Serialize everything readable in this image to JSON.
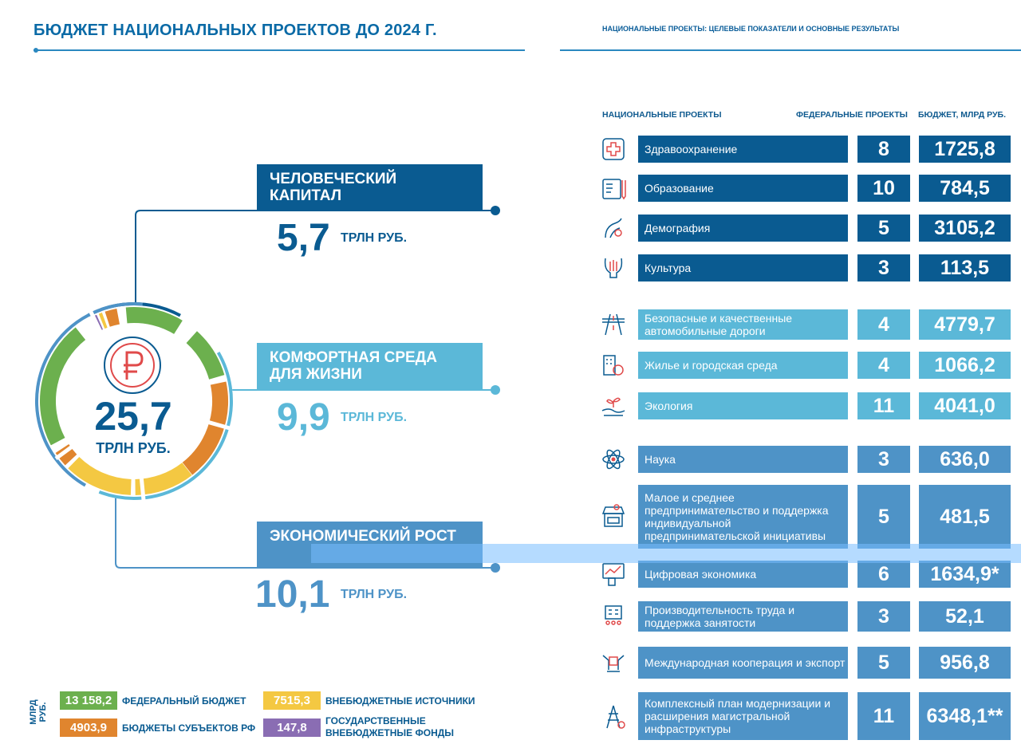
{
  "header": {
    "title": "БЮДЖЕТ НАЦИОНАЛЬНЫХ ПРОЕКТОВ ДО 2024 Г.",
    "subtitle": "НАЦИОНАЛЬНЫЕ ПРОЕКТЫ: ЦЕЛЕВЫЕ ПОКАЗАТЕЛИ И ОСНОВНЫЕ РЕЗУЛЬТАТЫ"
  },
  "total": {
    "value": "25,7",
    "unit": "ТРЛН РУБ."
  },
  "groups": [
    {
      "title": "ЧЕЛОВЕЧЕСКИЙ КАПИТАЛ",
      "value": "5,7",
      "unit": "ТРЛН РУБ.",
      "color": "#0a5b91"
    },
    {
      "title": "КОМФОРТНАЯ СРЕДА ДЛЯ ЖИЗНИ",
      "value": "9,9",
      "unit": "ТРЛН РУБ.",
      "color": "#5bb8d8"
    },
    {
      "title": "ЭКОНОМИЧЕСКИЙ РОСТ",
      "value": "10,1",
      "unit": "ТРЛН РУБ.",
      "color": "#4e93c7"
    }
  ],
  "table": {
    "col_projects": "НАЦИОНАЛЬНЫЕ ПРОЕКТЫ",
    "col_federal": "ФЕДЕРАЛЬНЫЕ ПРОЕКТЫ",
    "col_budget": "БЮДЖЕТ, МЛРД РУБ.",
    "rows": [
      {
        "icon": "health-cross-icon",
        "name": "Здравоохранение",
        "federal": "8",
        "budget": "1725,8"
      },
      {
        "icon": "education-book-icon",
        "name": "Образование",
        "federal": "10",
        "budget": "784,5"
      },
      {
        "icon": "demography-stork-icon",
        "name": "Демография",
        "federal": "5",
        "budget": "3105,2"
      },
      {
        "icon": "culture-lyre-icon",
        "name": "Культура",
        "federal": "3",
        "budget": "113,5"
      },
      {
        "icon": "road-icon",
        "name": "Безопасные и качественные автомобильные дороги",
        "federal": "4",
        "budget": "4779,7"
      },
      {
        "icon": "housing-icon",
        "name": "Жилье и городская среда",
        "federal": "4",
        "budget": "1066,2"
      },
      {
        "icon": "ecology-sprout-icon",
        "name": "Экология",
        "federal": "11",
        "budget": "4041,0"
      },
      {
        "icon": "science-atom-icon",
        "name": "Наука",
        "federal": "3",
        "budget": "636,0"
      },
      {
        "icon": "small-business-shop-icon",
        "name": "Малое и среднее предпринимательство и поддержка индивидуальной предпринимательской инициативы",
        "federal": "5",
        "budget": "481,5"
      },
      {
        "icon": "digital-economy-icon",
        "name": "Цифровая экономика",
        "federal": "6",
        "budget": "1634,9*"
      },
      {
        "icon": "productivity-building-icon",
        "name": "Производительность труда и поддержка занятости",
        "federal": "3",
        "budget": "52,1"
      },
      {
        "icon": "export-hands-icon",
        "name": "Международная кооперация и экспорт",
        "federal": "5",
        "budget": "956,8"
      },
      {
        "icon": "infrastructure-tower-icon",
        "name": "Комплексный план модернизации и расширения магистральной инфраструктуры",
        "federal": "11",
        "budget": "6348,1**"
      }
    ]
  },
  "legend": {
    "unit_label": "МЛРД РУБ.",
    "items": [
      {
        "value": "13 158,2",
        "label": "ФЕДЕРАЛЬНЫЙ БЮДЖЕТ",
        "color": "#6cb04e"
      },
      {
        "value": "4903,9",
        "label": "БЮДЖЕТЫ СУБЪЕКТОВ РФ",
        "color": "#e0852e"
      },
      {
        "value": "7515,3",
        "label": "ВНЕБЮДЖЕТНЫЕ ИСТОЧНИКИ",
        "color": "#f4c842"
      },
      {
        "value": "147,8",
        "label": "ГОСУДАРСТВЕННЫЕ ВНЕБЮДЖЕТНЫЕ ФОНДЫ",
        "color": "#8a6db3"
      }
    ]
  }
}
